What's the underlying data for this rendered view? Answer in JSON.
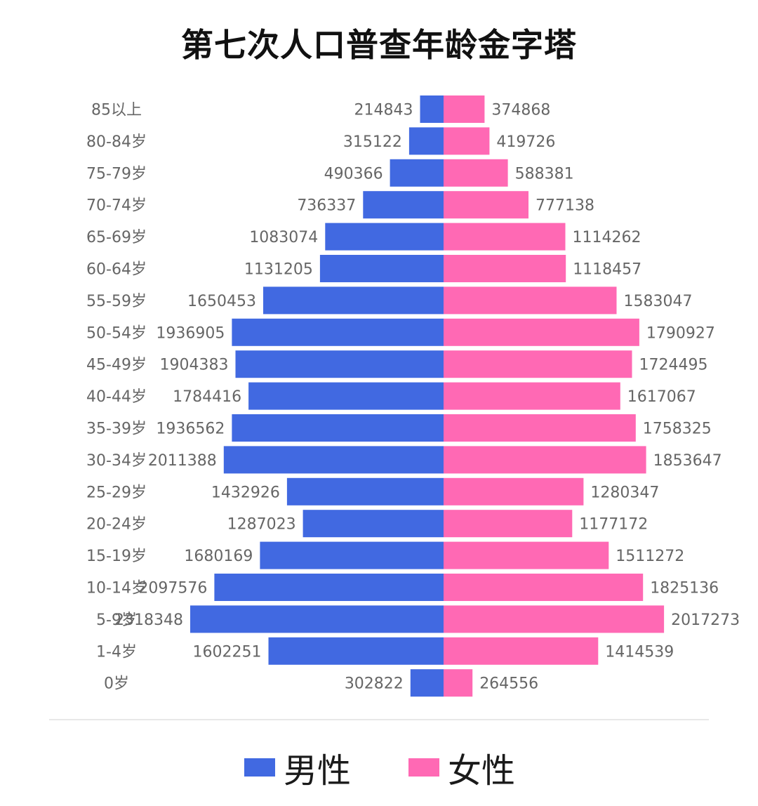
{
  "title": "第七次人口普查年龄金字塔",
  "colors": {
    "male": "#4169e1",
    "female": "#ff69b4"
  },
  "legend": {
    "male_label": "男性",
    "female_label": "女性"
  },
  "chart_data": {
    "type": "bar",
    "title": "第七次人口普查年龄金字塔",
    "categories": [
      "85以上",
      "80-84岁",
      "75-79岁",
      "70-74岁",
      "65-69岁",
      "60-64岁",
      "55-59岁",
      "50-54岁",
      "45-49岁",
      "40-44岁",
      "35-39岁",
      "30-34岁",
      "25-29岁",
      "20-24岁",
      "15-19岁",
      "10-14岁",
      "5-9岁",
      "1-4岁",
      "0岁"
    ],
    "series": [
      {
        "name": "男性",
        "values": [
          214843,
          315122,
          490366,
          736337,
          1083074,
          1131205,
          1650453,
          1936905,
          1904383,
          1784416,
          1936562,
          2011388,
          1432926,
          1287023,
          1680169,
          2097576,
          2318348,
          1602251,
          302822
        ]
      },
      {
        "name": "女性",
        "values": [
          374868,
          419726,
          588381,
          777138,
          1114262,
          1118457,
          1583047,
          1790927,
          1724495,
          1617067,
          1758325,
          1853647,
          1280347,
          1177172,
          1511272,
          1825136,
          2017273,
          1414539,
          264556
        ]
      }
    ],
    "legend_position": "bottom",
    "grid": false
  }
}
